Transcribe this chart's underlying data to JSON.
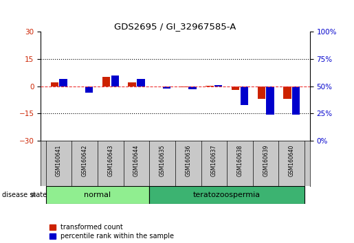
{
  "title": "GDS2695 / GI_32967585-A",
  "samples": [
    "GSM160641",
    "GSM160642",
    "GSM160643",
    "GSM160644",
    "GSM160635",
    "GSM160636",
    "GSM160637",
    "GSM160638",
    "GSM160639",
    "GSM160640"
  ],
  "groups": [
    {
      "label": "normal",
      "indices": [
        0,
        1,
        2,
        3
      ],
      "color": "#90EE90"
    },
    {
      "label": "teratozoospermia",
      "indices": [
        4,
        5,
        6,
        7,
        8,
        9
      ],
      "color": "#3CB371"
    }
  ],
  "red_values": [
    2.0,
    -0.3,
    5.0,
    2.0,
    -0.3,
    -0.5,
    0.3,
    -2.0,
    -7.0,
    -7.0
  ],
  "blue_values_right": [
    57,
    44,
    60,
    57,
    48,
    47,
    51,
    33,
    24,
    24
  ],
  "ylim_left": [
    -30,
    30
  ],
  "ylim_right": [
    0,
    100
  ],
  "yticks_left": [
    -30,
    -15,
    0,
    15,
    30
  ],
  "yticks_right": [
    0,
    25,
    50,
    75,
    100
  ],
  "hlines": [
    15,
    -15
  ],
  "zero_line_color": "#EE3333",
  "red_color": "#CC2200",
  "blue_color": "#0000CC",
  "bar_width": 0.3,
  "bg_color": "#FFFFFF",
  "plot_bg": "#FFFFFF",
  "label_red": "transformed count",
  "label_blue": "percentile rank within the sample",
  "disease_label": "disease state",
  "sample_area_color": "#C8C8C8",
  "normal_group_color": "#90EE90",
  "terato_group_color": "#3CB371"
}
